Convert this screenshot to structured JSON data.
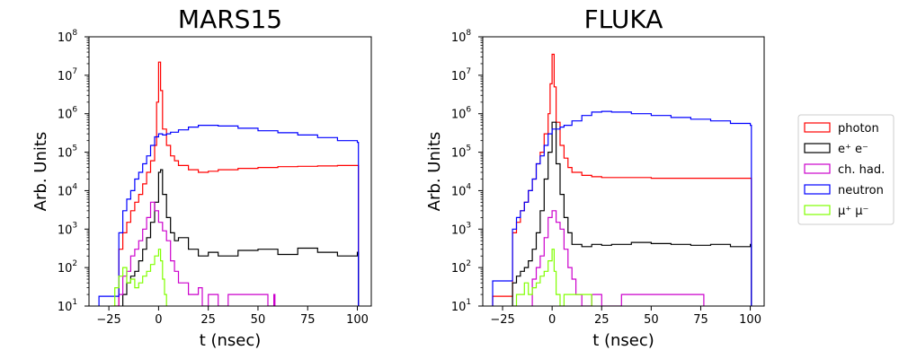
{
  "chart_data": [
    {
      "type": "line",
      "title": "MARS15",
      "xlabel": "t (nsec)",
      "ylabel": "Arb. Units",
      "xlim": [
        -35,
        107
      ],
      "ylim": [
        10,
        100000000
      ],
      "yscale": "log",
      "xticks": [
        -25,
        0,
        25,
        50,
        75,
        100
      ],
      "xtick_labels": [
        "−25",
        "0",
        "25",
        "50",
        "75",
        "100"
      ],
      "yticks": [
        10,
        100,
        1000,
        10000,
        100000,
        1000000,
        10000000,
        100000000
      ],
      "ytick_labels": [
        {
          "base": "10",
          "exp": "1"
        },
        {
          "base": "10",
          "exp": "2"
        },
        {
          "base": "10",
          "exp": "3"
        },
        {
          "base": "10",
          "exp": "4"
        },
        {
          "base": "10",
          "exp": "5"
        },
        {
          "base": "10",
          "exp": "6"
        },
        {
          "base": "10",
          "exp": "7"
        },
        {
          "base": "10",
          "exp": "8"
        }
      ],
      "grid": false,
      "series": [
        {
          "name": "photon",
          "color": "#ff0000",
          "x": [
            -22,
            -20,
            -18,
            -16,
            -14,
            -12,
            -10,
            -8,
            -6,
            -4,
            -2,
            -1,
            0,
            1,
            2,
            4,
            6,
            8,
            10,
            15,
            20,
            25,
            30,
            40,
            50,
            60,
            70,
            80,
            90,
            100
          ],
          "y": [
            10,
            300,
            800,
            1500,
            3000,
            5000,
            8000,
            15000,
            30000,
            60000,
            150000,
            2000000,
            22000000,
            4000000,
            400000,
            150000,
            80000,
            60000,
            45000,
            35000,
            30000,
            32000,
            35000,
            38000,
            40000,
            42000,
            43000,
            44000,
            45000,
            45000
          ]
        },
        {
          "name": "e⁺ e⁻",
          "color": "#000000",
          "x": [
            -18,
            -16,
            -14,
            -12,
            -10,
            -8,
            -6,
            -4,
            -2,
            0,
            1,
            2,
            4,
            6,
            8,
            10,
            15,
            20,
            25,
            30,
            40,
            50,
            60,
            70,
            80,
            90,
            100
          ],
          "y": [
            20,
            40,
            60,
            80,
            150,
            300,
            600,
            1500,
            5000,
            30000,
            35000,
            8000,
            2000,
            800,
            500,
            600,
            300,
            200,
            250,
            200,
            280,
            300,
            220,
            320,
            250,
            200,
            250
          ]
        },
        {
          "name": "ch. had.",
          "color": "#cc00cc",
          "x": [
            -20,
            -18,
            -16,
            -14,
            -12,
            -10,
            -8,
            -6,
            -4,
            -2,
            0,
            2,
            4,
            6,
            8,
            10,
            15,
            20,
            22,
            25,
            30,
            35,
            55,
            58
          ],
          "y": [
            20,
            60,
            80,
            200,
            300,
            500,
            1000,
            2000,
            5000,
            3000,
            1500,
            900,
            500,
            150,
            80,
            40,
            20,
            30,
            10,
            20,
            10,
            20,
            10,
            20
          ]
        },
        {
          "name": "neutron",
          "color": "#0000ff",
          "x": [
            -30,
            -22,
            -20,
            -18,
            -16,
            -14,
            -12,
            -10,
            -8,
            -6,
            -4,
            -2,
            0,
            2,
            4,
            6,
            10,
            15,
            20,
            25,
            30,
            40,
            50,
            60,
            70,
            80,
            90,
            100
          ],
          "y": [
            18,
            18,
            800,
            3000,
            6000,
            10000,
            20000,
            30000,
            50000,
            80000,
            150000,
            250000,
            300000,
            280000,
            300000,
            330000,
            380000,
            450000,
            500000,
            500000,
            480000,
            420000,
            360000,
            320000,
            280000,
            240000,
            200000,
            180000
          ]
        },
        {
          "name": "μ⁺ μ⁻",
          "color": "#80ff00",
          "x": [
            -24,
            -22,
            -20,
            -18,
            -16,
            -14,
            -12,
            -10,
            -8,
            -6,
            -4,
            -2,
            0,
            1,
            2,
            3,
            4
          ],
          "y": [
            10,
            30,
            60,
            100,
            40,
            50,
            30,
            40,
            60,
            80,
            120,
            200,
            300,
            150,
            50,
            20,
            10
          ]
        }
      ]
    },
    {
      "type": "line",
      "title": "FLUKA",
      "xlabel": "t (nsec)",
      "ylabel": "Arb. Units",
      "xlim": [
        -35,
        107
      ],
      "ylim": [
        10,
        100000000
      ],
      "yscale": "log",
      "xticks": [
        -25,
        0,
        25,
        50,
        75,
        100
      ],
      "xtick_labels": [
        "−25",
        "0",
        "25",
        "50",
        "75",
        "100"
      ],
      "yticks": [
        10,
        100,
        1000,
        10000,
        100000,
        1000000,
        10000000,
        100000000
      ],
      "ytick_labels": [
        {
          "base": "10",
          "exp": "1"
        },
        {
          "base": "10",
          "exp": "2"
        },
        {
          "base": "10",
          "exp": "3"
        },
        {
          "base": "10",
          "exp": "4"
        },
        {
          "base": "10",
          "exp": "5"
        },
        {
          "base": "10",
          "exp": "6"
        },
        {
          "base": "10",
          "exp": "7"
        },
        {
          "base": "10",
          "exp": "8"
        }
      ],
      "grid": false,
      "series": [
        {
          "name": "photon",
          "color": "#ff0000",
          "x": [
            -30,
            -22,
            -20,
            -18,
            -16,
            -14,
            -12,
            -10,
            -8,
            -6,
            -4,
            -2,
            -1,
            0,
            1,
            2,
            4,
            6,
            8,
            10,
            15,
            20,
            25,
            30,
            40,
            50,
            60,
            70,
            80,
            90,
            100
          ],
          "y": [
            18,
            18,
            800,
            1500,
            3000,
            5000,
            10000,
            20000,
            50000,
            100000,
            300000,
            1000000,
            6000000,
            35000000,
            5000000,
            600000,
            150000,
            70000,
            40000,
            30000,
            25000,
            23000,
            22000,
            22000,
            22000,
            21000,
            21000,
            21000,
            21000,
            21000,
            21000
          ]
        },
        {
          "name": "e⁺ e⁻",
          "color": "#000000",
          "x": [
            -20,
            -18,
            -16,
            -14,
            -12,
            -10,
            -8,
            -6,
            -4,
            -2,
            0,
            2,
            4,
            6,
            8,
            10,
            15,
            20,
            25,
            30,
            40,
            50,
            60,
            70,
            80,
            90,
            100
          ],
          "y": [
            40,
            60,
            80,
            100,
            150,
            300,
            800,
            3000,
            20000,
            100000,
            600000,
            50000,
            8000,
            2000,
            800,
            400,
            350,
            400,
            380,
            400,
            450,
            420,
            400,
            380,
            400,
            350,
            400
          ]
        },
        {
          "name": "ch. had.",
          "color": "#cc00cc",
          "x": [
            -10,
            -8,
            -6,
            -4,
            -2,
            0,
            2,
            4,
            6,
            8,
            10,
            12,
            15,
            20,
            25,
            35,
            45,
            57,
            76
          ],
          "y": [
            50,
            100,
            200,
            600,
            2000,
            3000,
            1500,
            1000,
            300,
            100,
            50,
            20,
            10,
            20,
            10,
            20,
            20,
            20,
            20
          ]
        },
        {
          "name": "neutron",
          "color": "#0000ff",
          "x": [
            -30,
            -22,
            -20,
            -18,
            -16,
            -14,
            -12,
            -10,
            -8,
            -6,
            -4,
            -2,
            0,
            2,
            4,
            6,
            10,
            15,
            20,
            25,
            30,
            40,
            50,
            60,
            70,
            80,
            90,
            100
          ],
          "y": [
            45,
            45,
            1000,
            2000,
            3000,
            5000,
            10000,
            20000,
            50000,
            80000,
            150000,
            300000,
            400000,
            400000,
            450000,
            500000,
            650000,
            900000,
            1100000,
            1150000,
            1100000,
            1000000,
            900000,
            800000,
            720000,
            650000,
            560000,
            500000
          ]
        },
        {
          "name": "μ⁺ μ⁻",
          "color": "#80ff00",
          "x": [
            -20,
            -18,
            -16,
            -14,
            -12,
            -10,
            -8,
            -6,
            -4,
            -2,
            0,
            1,
            2,
            4,
            6,
            10,
            15,
            20
          ],
          "y": [
            10,
            20,
            20,
            40,
            20,
            30,
            40,
            60,
            80,
            150,
            300,
            80,
            20,
            10,
            20,
            20,
            20,
            10
          ]
        }
      ]
    }
  ],
  "legend": {
    "placement": "right",
    "entries": [
      {
        "label": "photon",
        "color": "#ff0000"
      },
      {
        "label": "e⁺ e⁻",
        "color": "#000000"
      },
      {
        "label": "ch. had.",
        "color": "#cc00cc"
      },
      {
        "label": "neutron",
        "color": "#0000ff"
      },
      {
        "label": "μ⁺ μ⁻",
        "color": "#80ff00"
      }
    ]
  }
}
